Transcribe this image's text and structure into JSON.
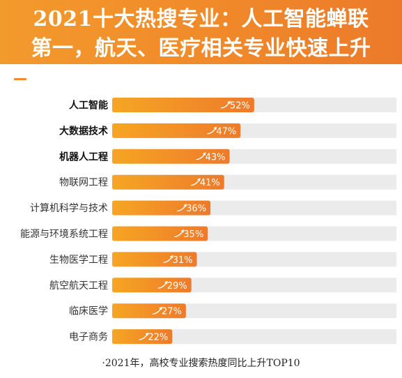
{
  "header": {
    "line1": "2021十大热搜专业：人工智能蝉联",
    "line2": "第一，航天、医疗相关专业快速上升"
  },
  "footnote": "·2021年，高校专业搜索热度同比上升TOP10",
  "colors": {
    "header_bg": "#f0892a",
    "bar_start": "#f5a623",
    "bar_end": "#ee7a2b",
    "track": "#ebebeb"
  },
  "chart_data": {
    "type": "bar",
    "orientation": "horizontal",
    "categories": [
      "人工智能",
      "大数据技术",
      "机器人工程",
      "物联网工程",
      "计算机科学与技术",
      "能源与环境系统工程",
      "生物医学工程",
      "航空航天工程",
      "临床医学",
      "电子商务"
    ],
    "values": [
      52,
      47,
      43,
      41,
      36,
      35,
      31,
      29,
      27,
      22
    ],
    "value_labels": [
      "52%",
      "47%",
      "43%",
      "41%",
      "36%",
      "35%",
      "31%",
      "29%",
      "27%",
      "22%"
    ],
    "bold_categories": [
      "人工智能",
      "大数据技术",
      "机器人工程"
    ],
    "xlim": [
      0,
      100
    ],
    "grid": false
  }
}
